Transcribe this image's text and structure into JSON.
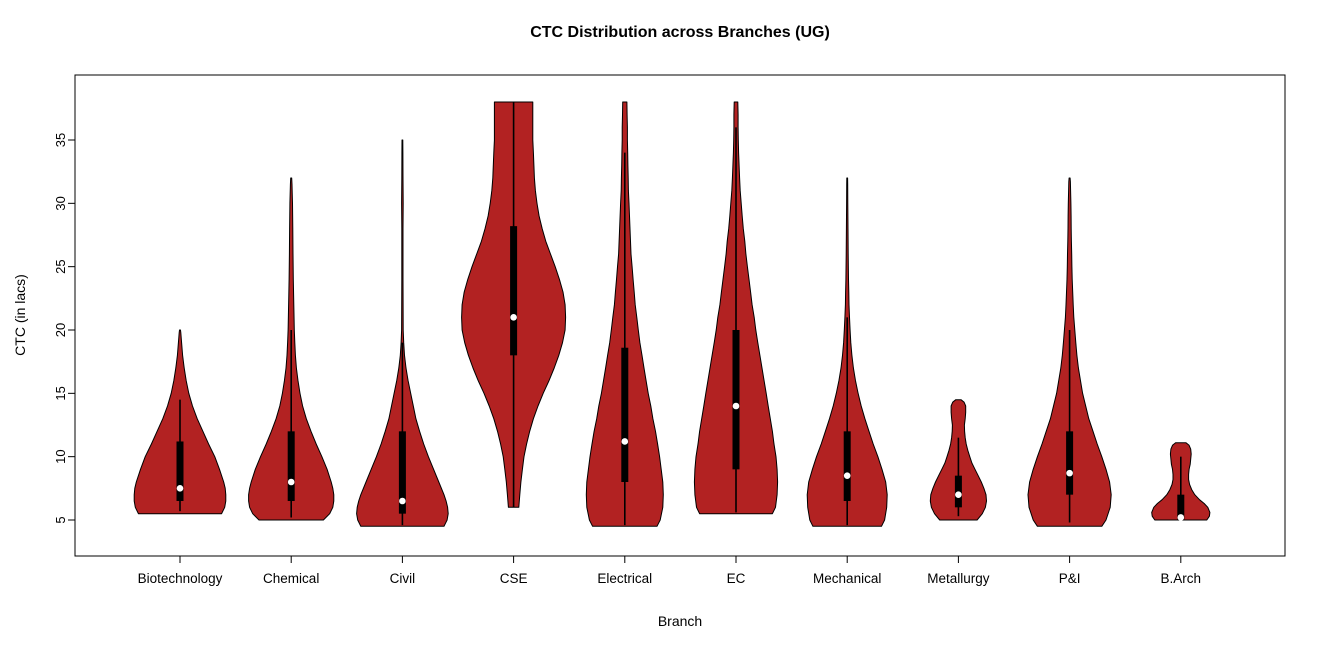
{
  "chart_data": {
    "type": "violin",
    "title": "CTC Distribution across Branches (UG)",
    "xlabel": "Branch",
    "ylabel": "CTC (in lacs)",
    "ylim": [
      2.5,
      40
    ],
    "yticks": [
      5,
      10,
      15,
      20,
      25,
      30,
      35
    ],
    "grid": false,
    "violin_color": "#B22222",
    "outline_color": "#000000",
    "median_dot_color": "#ffffff",
    "categories": [
      "Biotechnology",
      "Chemical",
      "Civil",
      "CSE",
      "Electrical",
      "EC",
      "Mechanical",
      "Metallurgy",
      "P&I",
      "B.Arch"
    ],
    "series": [
      {
        "name": "Biotechnology",
        "min": 5.5,
        "max": 20,
        "q1": 6.5,
        "q3": 11.2,
        "median": 7.5,
        "whisker_low": 5.7,
        "whisker_high": 14.5,
        "profile": [
          [
            5.5,
            0.8
          ],
          [
            6,
            0.86
          ],
          [
            6.5,
            0.88
          ],
          [
            7,
            0.88
          ],
          [
            7.5,
            0.87
          ],
          [
            8,
            0.84
          ],
          [
            9,
            0.76
          ],
          [
            10,
            0.67
          ],
          [
            11,
            0.55
          ],
          [
            12,
            0.44
          ],
          [
            13,
            0.33
          ],
          [
            14,
            0.24
          ],
          [
            15,
            0.17
          ],
          [
            16,
            0.12
          ],
          [
            17,
            0.08
          ],
          [
            18,
            0.05
          ],
          [
            19,
            0.03
          ],
          [
            19.8,
            0.015
          ],
          [
            20,
            0.01
          ]
        ]
      },
      {
        "name": "Chemical",
        "min": 5,
        "max": 32,
        "q1": 6.5,
        "q3": 12,
        "median": 8,
        "whisker_low": 5.2,
        "whisker_high": 20,
        "profile": [
          [
            5,
            0.62
          ],
          [
            5.5,
            0.74
          ],
          [
            6,
            0.8
          ],
          [
            6.5,
            0.82
          ],
          [
            7,
            0.82
          ],
          [
            7.5,
            0.8
          ],
          [
            8,
            0.77
          ],
          [
            9,
            0.69
          ],
          [
            10,
            0.59
          ],
          [
            11,
            0.48
          ],
          [
            12,
            0.38
          ],
          [
            13,
            0.29
          ],
          [
            14,
            0.22
          ],
          [
            15,
            0.17
          ],
          [
            16,
            0.13
          ],
          [
            17,
            0.1
          ],
          [
            18,
            0.08
          ],
          [
            19,
            0.07
          ],
          [
            20,
            0.06
          ],
          [
            22,
            0.05
          ],
          [
            24,
            0.04
          ],
          [
            26,
            0.035
          ],
          [
            28,
            0.03
          ],
          [
            30,
            0.025
          ],
          [
            31.5,
            0.015
          ],
          [
            32,
            0.01
          ]
        ]
      },
      {
        "name": "Civil",
        "min": 4.5,
        "max": 35,
        "q1": 5.5,
        "q3": 12,
        "median": 6.5,
        "whisker_low": 4.6,
        "whisker_high": 19,
        "profile": [
          [
            4.5,
            0.8
          ],
          [
            5,
            0.86
          ],
          [
            5.5,
            0.88
          ],
          [
            6,
            0.87
          ],
          [
            6.5,
            0.84
          ],
          [
            7,
            0.8
          ],
          [
            8,
            0.7
          ],
          [
            9,
            0.6
          ],
          [
            10,
            0.5
          ],
          [
            11,
            0.41
          ],
          [
            12,
            0.33
          ],
          [
            13,
            0.26
          ],
          [
            14,
            0.21
          ],
          [
            15,
            0.16
          ],
          [
            16,
            0.11
          ],
          [
            17,
            0.07
          ],
          [
            18,
            0.04
          ],
          [
            19,
            0.025
          ],
          [
            20,
            0.015
          ],
          [
            24,
            0.012
          ],
          [
            28,
            0.012
          ],
          [
            30,
            0.015
          ],
          [
            32,
            0.012
          ],
          [
            34,
            0.01
          ],
          [
            35,
            0.008
          ]
        ]
      },
      {
        "name": "CSE",
        "min": 6,
        "max": 38,
        "q1": 18,
        "q3": 28.2,
        "median": 21,
        "whisker_low": 6,
        "whisker_high": 38,
        "profile": [
          [
            6,
            0.1
          ],
          [
            7,
            0.12
          ],
          [
            8,
            0.14
          ],
          [
            9,
            0.17
          ],
          [
            10,
            0.2
          ],
          [
            11,
            0.25
          ],
          [
            12,
            0.31
          ],
          [
            13,
            0.38
          ],
          [
            14,
            0.47
          ],
          [
            15,
            0.57
          ],
          [
            16,
            0.68
          ],
          [
            17,
            0.78
          ],
          [
            18,
            0.87
          ],
          [
            19,
            0.94
          ],
          [
            20,
            0.99
          ],
          [
            21,
            1.0
          ],
          [
            22,
            0.99
          ],
          [
            23,
            0.95
          ],
          [
            24,
            0.88
          ],
          [
            25,
            0.8
          ],
          [
            26,
            0.71
          ],
          [
            27,
            0.62
          ],
          [
            28,
            0.55
          ],
          [
            29,
            0.49
          ],
          [
            30,
            0.45
          ],
          [
            31,
            0.42
          ],
          [
            32,
            0.4
          ],
          [
            33,
            0.39
          ],
          [
            34,
            0.38
          ],
          [
            35,
            0.37
          ],
          [
            36,
            0.37
          ],
          [
            37,
            0.37
          ],
          [
            38,
            0.37
          ]
        ]
      },
      {
        "name": "Electrical",
        "min": 4.5,
        "max": 38,
        "q1": 8,
        "q3": 18.6,
        "median": 11.2,
        "whisker_low": 4.6,
        "whisker_high": 34,
        "profile": [
          [
            4.5,
            0.62
          ],
          [
            5,
            0.68
          ],
          [
            6,
            0.73
          ],
          [
            7,
            0.74
          ],
          [
            8,
            0.73
          ],
          [
            9,
            0.7
          ],
          [
            10,
            0.67
          ],
          [
            11,
            0.63
          ],
          [
            12,
            0.59
          ],
          [
            13,
            0.54
          ],
          [
            14,
            0.5
          ],
          [
            15,
            0.45
          ],
          [
            16,
            0.41
          ],
          [
            17,
            0.37
          ],
          [
            18,
            0.33
          ],
          [
            19,
            0.29
          ],
          [
            20,
            0.26
          ],
          [
            21,
            0.23
          ],
          [
            22,
            0.2
          ],
          [
            23,
            0.18
          ],
          [
            24,
            0.16
          ],
          [
            25,
            0.14
          ],
          [
            26,
            0.12
          ],
          [
            27,
            0.11
          ],
          [
            28,
            0.1
          ],
          [
            29,
            0.09
          ],
          [
            30,
            0.08
          ],
          [
            31,
            0.07
          ],
          [
            32,
            0.065
          ],
          [
            33,
            0.06
          ],
          [
            34,
            0.055
          ],
          [
            35,
            0.05
          ],
          [
            36,
            0.05
          ],
          [
            37,
            0.045
          ],
          [
            38,
            0.04
          ]
        ]
      },
      {
        "name": "EC",
        "min": 5.5,
        "max": 38,
        "q1": 9,
        "q3": 20,
        "median": 14,
        "whisker_low": 5.6,
        "whisker_high": 36,
        "profile": [
          [
            5.5,
            0.7
          ],
          [
            6,
            0.76
          ],
          [
            7,
            0.79
          ],
          [
            8,
            0.8
          ],
          [
            9,
            0.79
          ],
          [
            10,
            0.77
          ],
          [
            11,
            0.73
          ],
          [
            12,
            0.7
          ],
          [
            13,
            0.66
          ],
          [
            14,
            0.62
          ],
          [
            15,
            0.58
          ],
          [
            16,
            0.54
          ],
          [
            17,
            0.5
          ],
          [
            18,
            0.46
          ],
          [
            19,
            0.42
          ],
          [
            20,
            0.38
          ],
          [
            21,
            0.35
          ],
          [
            22,
            0.31
          ],
          [
            23,
            0.28
          ],
          [
            24,
            0.25
          ],
          [
            25,
            0.22
          ],
          [
            26,
            0.19
          ],
          [
            27,
            0.17
          ],
          [
            28,
            0.14
          ],
          [
            29,
            0.12
          ],
          [
            30,
            0.1
          ],
          [
            31,
            0.08
          ],
          [
            32,
            0.07
          ],
          [
            33,
            0.06
          ],
          [
            34,
            0.05
          ],
          [
            35,
            0.045
          ],
          [
            36,
            0.04
          ],
          [
            37,
            0.04
          ],
          [
            38,
            0.035
          ]
        ]
      },
      {
        "name": "Mechanical",
        "min": 4.5,
        "max": 32,
        "q1": 6.5,
        "q3": 12,
        "median": 8.5,
        "whisker_low": 4.6,
        "whisker_high": 21,
        "profile": [
          [
            4.5,
            0.66
          ],
          [
            5,
            0.72
          ],
          [
            6,
            0.76
          ],
          [
            7,
            0.77
          ],
          [
            8,
            0.74
          ],
          [
            9,
            0.67
          ],
          [
            10,
            0.59
          ],
          [
            11,
            0.5
          ],
          [
            12,
            0.42
          ],
          [
            13,
            0.34
          ],
          [
            14,
            0.27
          ],
          [
            15,
            0.21
          ],
          [
            16,
            0.16
          ],
          [
            17,
            0.12
          ],
          [
            18,
            0.09
          ],
          [
            19,
            0.07
          ],
          [
            20,
            0.055
          ],
          [
            21,
            0.045
          ],
          [
            22,
            0.035
          ],
          [
            23,
            0.03
          ],
          [
            24,
            0.025
          ],
          [
            26,
            0.02
          ],
          [
            28,
            0.015
          ],
          [
            30,
            0.012
          ],
          [
            31.5,
            0.01
          ],
          [
            32,
            0.008
          ]
        ]
      },
      {
        "name": "Metallurgy",
        "min": 5,
        "max": 14.5,
        "q1": 6,
        "q3": 8.5,
        "median": 7,
        "whisker_low": 5.3,
        "whisker_high": 11.5,
        "profile": [
          [
            5,
            0.36
          ],
          [
            5.5,
            0.46
          ],
          [
            6,
            0.52
          ],
          [
            6.5,
            0.54
          ],
          [
            7,
            0.53
          ],
          [
            7.5,
            0.49
          ],
          [
            8,
            0.44
          ],
          [
            8.5,
            0.38
          ],
          [
            9,
            0.32
          ],
          [
            9.5,
            0.26
          ],
          [
            10,
            0.22
          ],
          [
            10.5,
            0.18
          ],
          [
            11,
            0.15
          ],
          [
            11.5,
            0.13
          ],
          [
            12,
            0.12
          ],
          [
            12.5,
            0.115
          ],
          [
            13,
            0.13
          ],
          [
            13.5,
            0.14
          ],
          [
            14,
            0.14
          ],
          [
            14.3,
            0.11
          ],
          [
            14.5,
            0.05
          ]
        ]
      },
      {
        "name": "P&I",
        "min": 4.5,
        "max": 32,
        "q1": 7,
        "q3": 12,
        "median": 8.7,
        "whisker_low": 4.8,
        "whisker_high": 20,
        "profile": [
          [
            4.5,
            0.62
          ],
          [
            5,
            0.7
          ],
          [
            6,
            0.78
          ],
          [
            7,
            0.8
          ],
          [
            8,
            0.77
          ],
          [
            9,
            0.7
          ],
          [
            10,
            0.62
          ],
          [
            11,
            0.53
          ],
          [
            12,
            0.45
          ],
          [
            13,
            0.37
          ],
          [
            14,
            0.31
          ],
          [
            15,
            0.25
          ],
          [
            16,
            0.21
          ],
          [
            17,
            0.17
          ],
          [
            18,
            0.14
          ],
          [
            19,
            0.12
          ],
          [
            20,
            0.1
          ],
          [
            21,
            0.08
          ],
          [
            22,
            0.07
          ],
          [
            23,
            0.06
          ],
          [
            24,
            0.05
          ],
          [
            25,
            0.045
          ],
          [
            26,
            0.04
          ],
          [
            27,
            0.035
          ],
          [
            28,
            0.03
          ],
          [
            29,
            0.028
          ],
          [
            30,
            0.025
          ],
          [
            31,
            0.02
          ],
          [
            31.7,
            0.015
          ],
          [
            32,
            0.01
          ]
        ]
      },
      {
        "name": "B.Arch",
        "min": 5,
        "max": 11.1,
        "q1": 5,
        "q3": 7,
        "median": 5.2,
        "whisker_low": 5,
        "whisker_high": 10,
        "profile": [
          [
            5,
            0.5
          ],
          [
            5.3,
            0.55
          ],
          [
            5.6,
            0.56
          ],
          [
            6,
            0.52
          ],
          [
            6.3,
            0.45
          ],
          [
            6.6,
            0.36
          ],
          [
            7,
            0.27
          ],
          [
            7.4,
            0.21
          ],
          [
            7.8,
            0.17
          ],
          [
            8.2,
            0.15
          ],
          [
            8.6,
            0.15
          ],
          [
            9,
            0.16
          ],
          [
            9.4,
            0.18
          ],
          [
            9.8,
            0.19
          ],
          [
            10.2,
            0.2
          ],
          [
            10.6,
            0.19
          ],
          [
            10.9,
            0.16
          ],
          [
            11.1,
            0.1
          ]
        ]
      }
    ]
  }
}
